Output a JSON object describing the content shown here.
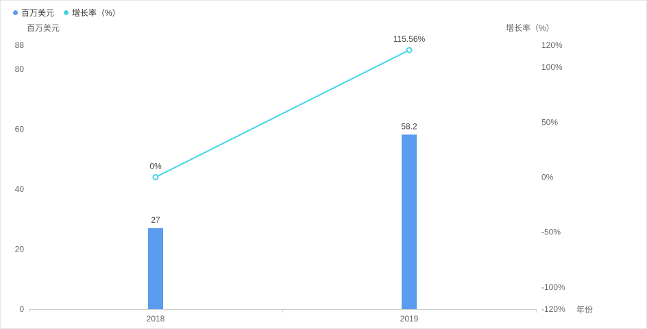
{
  "legend": {
    "items": [
      {
        "label": "百万美元"
      },
      {
        "label": "增长率（%）"
      }
    ]
  },
  "chart_data": {
    "type": "bar",
    "title": "",
    "categories": [
      "2018",
      "2019"
    ],
    "series": [
      {
        "name": "百万美元",
        "type": "bar",
        "axis": "left",
        "values": [
          27,
          58.2
        ],
        "labels": [
          "27",
          "58.2"
        ],
        "color": "#5b9bf0"
      },
      {
        "name": "增长率（%）",
        "type": "line",
        "axis": "right",
        "values": [
          0,
          115.56
        ],
        "labels": [
          "0%",
          "115.56%"
        ],
        "color": "#45d3e6"
      }
    ],
    "left_axis": {
      "name": "百万美元",
      "min": 0,
      "max": 88,
      "ticks": [
        0,
        20,
        40,
        60,
        80,
        88
      ],
      "tick_labels": [
        "0",
        "20",
        "40",
        "60",
        "80",
        "88"
      ]
    },
    "right_axis": {
      "name": "增长率（%）",
      "min": -120,
      "max": 120,
      "ticks": [
        -120,
        -100,
        -50,
        0,
        50,
        100,
        120
      ],
      "tick_labels": [
        "-120%",
        "-100%",
        "-50%",
        "0%",
        "50%",
        "100%",
        "120%"
      ]
    },
    "x_axis": {
      "name": "年份",
      "labels": [
        "2018",
        "2019"
      ]
    },
    "layout": {
      "grid_on": false,
      "legend_position": "top-left",
      "axis_line_color": "#cccccc",
      "tick_text_color": "#666666",
      "value_label_color": "#464646"
    }
  }
}
